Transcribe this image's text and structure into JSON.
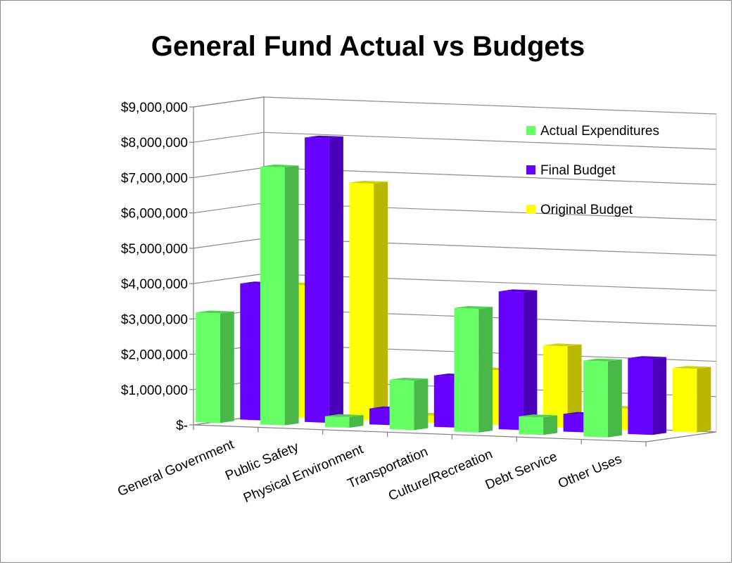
{
  "chart_data": {
    "type": "bar",
    "title": "General Fund Actual vs Budgets",
    "categories": [
      "General Government",
      "Public Safety",
      "Physical Environment",
      "Transportation",
      "Culture/Recreation",
      "Debt Service",
      "Other Uses"
    ],
    "series": [
      {
        "name": "Actual Expenditures",
        "color": "#66ff66",
        "values": [
          3100000,
          7300000,
          300000,
          1400000,
          3500000,
          500000,
          2150000
        ]
      },
      {
        "name": "Final Budget",
        "color": "#6600ff",
        "values": [
          3850000,
          8050000,
          450000,
          1450000,
          3900000,
          500000,
          2150000
        ]
      },
      {
        "name": "Original Budget",
        "color": "#ffff00",
        "values": [
          3750000,
          6700000,
          200000,
          1550000,
          2300000,
          600000,
          1800000
        ]
      }
    ],
    "yticks": [
      "$9,000,000",
      "$8,000,000",
      "$7,000,000",
      "$6,000,000",
      "$5,000,000",
      "$4,000,000",
      "$3,000,000",
      "$2,000,000",
      "$1,000,000",
      "$-"
    ],
    "ylim": [
      0,
      9000000
    ],
    "grid": true,
    "legend": "right"
  }
}
